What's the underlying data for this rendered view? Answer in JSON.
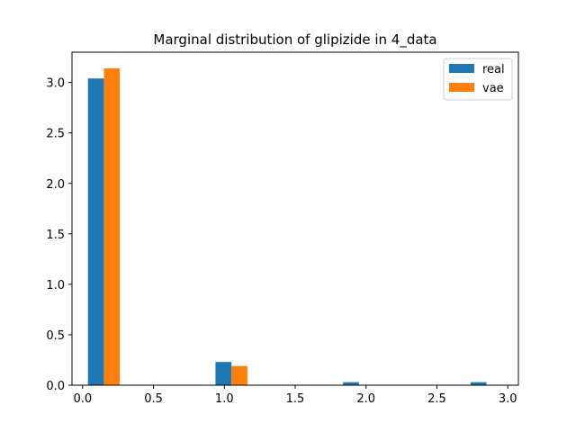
{
  "chart_data": {
    "type": "bar",
    "title": "Marginal distribution of glipizide in 4_data",
    "xlabel": "",
    "ylabel": "",
    "xlim": [
      -0.075,
      3.075
    ],
    "ylim": [
      0,
      3.3
    ],
    "xticks": [
      0.0,
      0.5,
      1.0,
      1.5,
      2.0,
      2.5,
      3.0
    ],
    "xtick_labels": [
      "0.0",
      "0.5",
      "1.0",
      "1.5",
      "2.0",
      "2.5",
      "3.0"
    ],
    "yticks": [
      0.0,
      0.5,
      1.0,
      1.5,
      2.0,
      2.5,
      3.0
    ],
    "ytick_labels": [
      "0.0",
      "0.5",
      "1.0",
      "1.5",
      "2.0",
      "2.5",
      "3.0"
    ],
    "grid": false,
    "legend_position": "top-right",
    "bin_width": 0.1125,
    "series": [
      {
        "name": "real",
        "color": "#1f77b4",
        "x": [
          0.0375,
          0.9375,
          1.8375,
          2.7375
        ],
        "values": [
          3.04,
          0.23,
          0.03,
          0.03
        ]
      },
      {
        "name": "vae",
        "color": "#ff7f0e",
        "x": [
          0.15,
          1.05
        ],
        "values": [
          3.14,
          0.19
        ]
      }
    ]
  }
}
